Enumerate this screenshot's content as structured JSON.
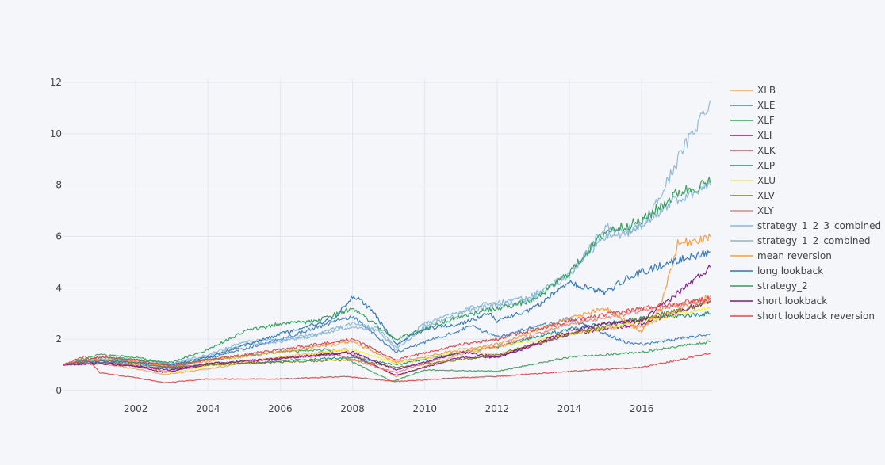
{
  "colors": {
    "background": "#f5f6fa",
    "grid": "#e4e6ee",
    "tick_text": "#444444"
  },
  "chart_data": {
    "type": "line",
    "title": "",
    "xlabel": "",
    "ylabel": "",
    "xlim": [
      2000.0,
      2017.95
    ],
    "ylim": [
      -0.35,
      12.35
    ],
    "x_ticks": [
      2002,
      2004,
      2006,
      2008,
      2010,
      2012,
      2014,
      2016
    ],
    "x_tick_labels": [
      "2002",
      "2004",
      "2006",
      "2008",
      "2010",
      "2012",
      "2014",
      "2016"
    ],
    "y_ticks": [
      0,
      2,
      4,
      6,
      8,
      10,
      12
    ],
    "y_tick_labels": [
      "0",
      "2",
      "4",
      "6",
      "8",
      "10",
      "12"
    ],
    "grid": true,
    "legend_position": "right",
    "series": [
      {
        "name": "XLB",
        "color": "#f7a35c",
        "dash": "solid",
        "x": [
          2000,
          2001,
          2002,
          2002.8,
          2004,
          2006,
          2007.8,
          2009.2,
          2011.3,
          2012,
          2014,
          2015.5,
          2016,
          2017.9
        ],
        "y": [
          1.0,
          1.05,
          0.85,
          0.62,
          0.85,
          1.3,
          1.6,
          0.55,
          1.55,
          1.35,
          2.2,
          2.5,
          2.5,
          3.7
        ]
      },
      {
        "name": "XLE",
        "color": "#3f7fc1",
        "dash": "solid",
        "x": [
          2000,
          2001,
          2002,
          2003,
          2004,
          2006,
          2008,
          2009.2,
          2011.3,
          2012,
          2014,
          2015.5,
          2016,
          2017.9
        ],
        "y": [
          1.0,
          1.1,
          1.0,
          0.85,
          1.25,
          2.0,
          2.9,
          1.5,
          2.5,
          2.1,
          2.8,
          1.9,
          1.8,
          2.2
        ]
      },
      {
        "name": "XLF",
        "color": "#3aa45a",
        "dash": "solid",
        "x": [
          2000,
          2001,
          2002,
          2003,
          2004,
          2006,
          2007.3,
          2009.1,
          2010,
          2012,
          2014,
          2016,
          2017.9
        ],
        "y": [
          1.0,
          1.4,
          1.3,
          1.0,
          1.2,
          1.5,
          1.6,
          0.35,
          0.8,
          0.75,
          1.3,
          1.5,
          1.9
        ]
      },
      {
        "name": "XLI",
        "color": "#8b1a8c",
        "dash": "solid",
        "x": [
          2000,
          2001,
          2002,
          2002.8,
          2004,
          2006,
          2007.8,
          2009.2,
          2011,
          2012,
          2014,
          2016,
          2017.9
        ],
        "y": [
          1.0,
          1.1,
          0.95,
          0.7,
          1.0,
          1.25,
          1.5,
          0.6,
          1.3,
          1.3,
          2.2,
          2.6,
          3.5
        ]
      },
      {
        "name": "XLK",
        "color": "#e04b4b",
        "dash": "solid",
        "x": [
          2000,
          2000.6,
          2001,
          2002,
          2002.8,
          2004,
          2006,
          2007.8,
          2009.2,
          2011,
          2012,
          2014,
          2016,
          2017.9
        ],
        "y": [
          1.0,
          1.35,
          0.7,
          0.5,
          0.3,
          0.45,
          0.45,
          0.55,
          0.35,
          0.5,
          0.55,
          0.75,
          0.9,
          1.45
        ]
      },
      {
        "name": "XLP",
        "color": "#1b8a8a",
        "dash": "solid",
        "x": [
          2000,
          2001,
          2002,
          2003,
          2004,
          2006,
          2008,
          2009.2,
          2011,
          2012,
          2014,
          2016,
          2017.9
        ],
        "y": [
          1.0,
          1.1,
          1.05,
          0.9,
          1.0,
          1.15,
          1.3,
          1.0,
          1.5,
          1.7,
          2.4,
          2.8,
          3.0
        ]
      },
      {
        "name": "XLU",
        "color": "#f2ee3c",
        "dash": "solid",
        "x": [
          2000,
          2001,
          2002,
          2003,
          2004,
          2006,
          2008,
          2009.2,
          2011,
          2012,
          2014,
          2016,
          2017.9
        ],
        "y": [
          1.0,
          1.25,
          1.0,
          0.7,
          0.95,
          1.3,
          1.6,
          1.05,
          1.5,
          1.7,
          2.2,
          2.7,
          3.2
        ]
      },
      {
        "name": "XLV",
        "color": "#7f7f1c",
        "dash": "solid",
        "x": [
          2000,
          2001,
          2002,
          2003,
          2004,
          2006,
          2008,
          2009.2,
          2011,
          2012,
          2014,
          2016,
          2017.9
        ],
        "y": [
          1.0,
          1.2,
          1.1,
          0.9,
          1.0,
          1.1,
          1.2,
          0.9,
          1.2,
          1.4,
          2.2,
          2.8,
          3.4
        ]
      },
      {
        "name": "XLY",
        "color": "#f47e71",
        "dash": "solid",
        "x": [
          2000,
          2001,
          2002,
          2002.8,
          2004,
          2006,
          2007.5,
          2009.2,
          2011,
          2012,
          2014,
          2016,
          2017.9
        ],
        "y": [
          1.0,
          1.05,
          1.0,
          0.75,
          1.05,
          1.25,
          1.4,
          0.7,
          1.5,
          1.7,
          2.6,
          3.1,
          3.5
        ]
      },
      {
        "name": "strategy_1_2_3_combined",
        "color": "#8cb7d6",
        "dash": "solid",
        "x": [
          2000,
          2001,
          2002,
          2003,
          2004,
          2005,
          2006,
          2007,
          2008,
          2008.7,
          2009.2,
          2010,
          2011,
          2011.8,
          2012.5,
          2013,
          2014,
          2015,
          2015.5,
          2016,
          2016.5,
          2017,
          2017.9
        ],
        "y": [
          1.0,
          1.2,
          1.15,
          1.0,
          1.35,
          1.8,
          1.9,
          2.15,
          2.5,
          2.3,
          1.6,
          2.5,
          3.0,
          3.3,
          3.4,
          3.6,
          4.5,
          6.4,
          6.0,
          6.4,
          7.5,
          9.0,
          11.3
        ]
      },
      {
        "name": "strategy_1_2_combined",
        "color": "#85b5d5",
        "dash": "solid",
        "x": [
          2000,
          2001,
          2002,
          2003,
          2004,
          2005,
          2006,
          2007,
          2008,
          2008.7,
          2009.2,
          2010,
          2011,
          2011.8,
          2012.5,
          2013,
          2014,
          2015,
          2015.5,
          2016,
          2016.5,
          2017,
          2017.9
        ],
        "y": [
          1.0,
          1.25,
          1.2,
          1.05,
          1.4,
          1.9,
          2.0,
          2.2,
          2.6,
          2.4,
          1.7,
          2.6,
          3.1,
          3.4,
          3.5,
          3.7,
          4.6,
          6.0,
          6.2,
          6.4,
          7.0,
          7.5,
          8.0
        ]
      },
      {
        "name": "mean reversion",
        "color": "#f79a3a",
        "dash": "solid",
        "x": [
          2000,
          2001,
          2002,
          2003,
          2004,
          2006,
          2008,
          2009.2,
          2011,
          2012,
          2014,
          2015,
          2016,
          2016.5,
          2017,
          2017.9
        ],
        "y": [
          1.0,
          1.2,
          1.1,
          0.95,
          1.15,
          1.5,
          1.9,
          1.1,
          1.6,
          1.8,
          2.8,
          3.2,
          2.3,
          3.2,
          5.7,
          6.0
        ]
      },
      {
        "name": "long lookback",
        "color": "#2f73b5",
        "dash": "solid",
        "x": [
          2000,
          2001,
          2002,
          2003,
          2004,
          2006,
          2007.5,
          2008,
          2008.5,
          2009.2,
          2010,
          2011,
          2011.8,
          2012,
          2013,
          2014,
          2015,
          2015.5,
          2016,
          2017,
          2017.9
        ],
        "y": [
          1.0,
          1.15,
          1.1,
          1.0,
          1.3,
          2.2,
          2.8,
          3.7,
          3.2,
          1.8,
          2.4,
          2.6,
          3.0,
          2.7,
          3.2,
          4.2,
          3.8,
          4.3,
          4.6,
          5.1,
          5.4
        ]
      },
      {
        "name": "strategy_2",
        "color": "#2f9e57",
        "dash": "solid",
        "x": [
          2000,
          2001,
          2002,
          2003,
          2004,
          2005,
          2006,
          2007,
          2008,
          2009.2,
          2010,
          2011,
          2012,
          2013,
          2014,
          2015,
          2016,
          2017,
          2017.9
        ],
        "y": [
          1.0,
          1.3,
          1.2,
          1.1,
          1.6,
          2.3,
          2.6,
          2.7,
          3.2,
          2.0,
          2.4,
          2.9,
          3.2,
          3.5,
          4.6,
          6.2,
          6.6,
          7.7,
          8.1
        ]
      },
      {
        "name": "short lookback",
        "color": "#7b1a87",
        "dash": "solid",
        "x": [
          2000,
          2001,
          2002,
          2003,
          2004,
          2006,
          2008,
          2009.2,
          2011,
          2012,
          2014,
          2015,
          2016,
          2017,
          2017.9
        ],
        "y": [
          1.0,
          1.05,
          0.95,
          0.8,
          1.05,
          1.25,
          1.5,
          0.8,
          1.5,
          1.3,
          2.3,
          2.6,
          2.7,
          3.8,
          4.8
        ]
      },
      {
        "name": "short lookback reversion",
        "color": "#e1454a",
        "dash": "solid",
        "x": [
          2000,
          2001,
          2002,
          2003,
          2004,
          2006,
          2008,
          2009.2,
          2011,
          2012,
          2014,
          2016,
          2017.9
        ],
        "y": [
          1.0,
          1.3,
          1.2,
          0.95,
          1.2,
          1.6,
          2.0,
          1.2,
          1.8,
          2.0,
          2.7,
          3.2,
          3.6
        ]
      }
    ]
  }
}
